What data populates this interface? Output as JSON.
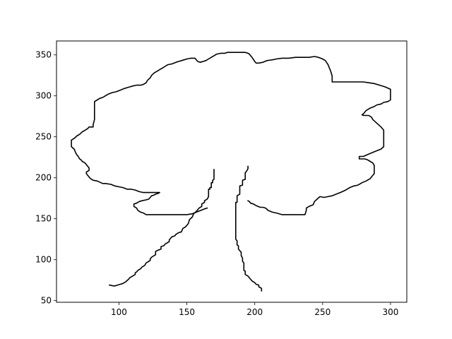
{
  "chart_data": {
    "type": "line",
    "title": "",
    "xlabel": "",
    "ylabel": "",
    "xlim": [
      54,
      312
    ],
    "ylim": [
      48,
      367
    ],
    "xticks": [
      100,
      150,
      200,
      250,
      300
    ],
    "yticks": [
      50,
      100,
      150,
      200,
      250,
      300,
      350
    ],
    "grid": false,
    "legend": "none",
    "line_color": "#000000",
    "series": [
      {
        "points": [
          [
            170,
            210
          ],
          [
            170,
            198
          ],
          [
            169,
            197
          ],
          [
            169,
            194
          ],
          [
            168,
            194
          ],
          [
            168,
            188
          ],
          [
            167,
            188
          ],
          [
            167,
            186
          ],
          [
            166,
            186
          ],
          [
            166,
            177
          ],
          [
            165,
            174
          ],
          [
            163,
            172
          ],
          [
            163,
            170
          ],
          [
            161,
            168
          ],
          [
            161,
            165
          ],
          [
            159,
            163
          ],
          [
            157,
            159
          ],
          [
            155,
            156
          ],
          [
            154,
            152
          ],
          [
            152,
            149
          ],
          [
            151,
            144
          ],
          [
            150,
            142
          ],
          [
            149,
            140
          ],
          [
            147,
            138
          ],
          [
            146,
            134
          ],
          [
            144,
            133
          ],
          [
            142,
            131
          ],
          [
            141,
            129
          ],
          [
            139,
            128
          ],
          [
            137,
            124
          ],
          [
            137,
            122
          ],
          [
            134,
            119
          ],
          [
            133,
            117
          ],
          [
            131,
            116
          ],
          [
            131,
            113
          ],
          [
            128,
            111
          ],
          [
            127,
            110
          ],
          [
            127,
            106
          ],
          [
            125,
            104
          ],
          [
            124,
            103
          ],
          [
            123,
            101
          ],
          [
            123,
            99
          ],
          [
            121,
            97
          ],
          [
            120,
            96
          ],
          [
            119,
            93
          ],
          [
            117,
            91
          ],
          [
            116,
            89
          ],
          [
            114,
            87
          ],
          [
            113,
            85
          ],
          [
            112,
            84
          ],
          [
            112,
            82
          ],
          [
            110,
            80
          ],
          [
            108,
            78
          ],
          [
            107,
            76
          ],
          [
            105,
            73
          ],
          [
            103,
            71
          ],
          [
            101,
            70
          ],
          [
            99,
            69
          ],
          [
            97,
            68
          ],
          [
            96,
            68
          ],
          [
            93,
            69
          ]
        ]
      },
      {
        "points": [
          [
            165,
            163
          ],
          [
            163,
            162
          ],
          [
            160,
            160
          ],
          [
            157,
            158
          ],
          [
            154,
            156
          ],
          [
            150,
            155
          ],
          [
            145,
            155
          ],
          [
            140,
            155
          ],
          [
            135,
            155
          ],
          [
            130,
            155
          ],
          [
            125,
            155
          ],
          [
            120,
            155
          ],
          [
            118,
            157
          ],
          [
            116,
            158
          ],
          [
            114,
            160
          ],
          [
            113,
            163
          ],
          [
            111,
            165
          ],
          [
            111,
            168
          ],
          [
            113,
            169
          ],
          [
            115,
            171
          ],
          [
            117,
            172
          ],
          [
            120,
            173
          ],
          [
            122,
            174
          ],
          [
            123,
            176
          ],
          [
            124,
            178
          ],
          [
            126,
            179
          ],
          [
            127,
            180
          ],
          [
            129,
            181
          ],
          [
            130,
            182
          ],
          [
            122,
            182
          ],
          [
            118,
            182
          ],
          [
            115,
            183
          ],
          [
            112,
            185
          ],
          [
            109,
            186
          ],
          [
            106,
            186
          ],
          [
            103,
            188
          ],
          [
            100,
            189
          ],
          [
            97,
            190
          ],
          [
            94,
            192
          ],
          [
            90,
            193
          ],
          [
            88,
            193
          ],
          [
            84,
            196
          ],
          [
            81,
            197
          ],
          [
            79,
            199
          ],
          [
            77,
            203
          ],
          [
            76,
            205
          ],
          [
            76,
            207
          ],
          [
            78,
            209
          ],
          [
            78,
            212
          ],
          [
            77,
            214
          ],
          [
            76,
            216
          ],
          [
            75,
            218
          ],
          [
            73,
            220
          ],
          [
            72,
            222
          ],
          [
            71,
            223
          ],
          [
            70,
            226
          ],
          [
            69,
            228
          ],
          [
            68,
            231
          ],
          [
            67,
            235
          ],
          [
            65,
            238
          ],
          [
            65,
            246
          ],
          [
            67,
            248
          ],
          [
            69,
            251
          ],
          [
            71,
            253
          ],
          [
            73,
            256
          ],
          [
            75,
            258
          ],
          [
            77,
            260
          ],
          [
            78,
            262
          ],
          [
            81,
            262
          ],
          [
            81,
            265
          ],
          [
            82,
            271
          ],
          [
            82,
            280
          ],
          [
            82,
            287
          ],
          [
            82,
            293
          ],
          [
            84,
            295
          ],
          [
            86,
            297
          ],
          [
            88,
            298
          ],
          [
            90,
            300
          ],
          [
            92,
            302
          ],
          [
            95,
            304
          ],
          [
            98,
            305
          ],
          [
            101,
            307
          ],
          [
            104,
            309
          ],
          [
            106,
            310
          ],
          [
            108,
            311
          ],
          [
            110,
            312
          ],
          [
            113,
            313
          ],
          [
            116,
            313
          ],
          [
            118,
            314
          ],
          [
            120,
            316
          ],
          [
            121,
            319
          ],
          [
            123,
            322
          ],
          [
            124,
            325
          ],
          [
            126,
            328
          ],
          [
            128,
            330
          ],
          [
            130,
            332
          ],
          [
            132,
            334
          ],
          [
            134,
            336
          ],
          [
            136,
            338
          ],
          [
            139,
            339
          ],
          [
            142,
            341
          ],
          [
            144,
            342
          ],
          [
            146,
            343
          ],
          [
            148,
            344
          ],
          [
            150,
            345
          ],
          [
            153,
            346
          ],
          [
            156,
            346
          ],
          [
            158,
            342
          ],
          [
            160,
            341
          ],
          [
            162,
            342
          ],
          [
            164,
            343
          ],
          [
            166,
            345
          ],
          [
            168,
            347
          ],
          [
            170,
            349
          ],
          [
            172,
            351
          ],
          [
            175,
            352
          ],
          [
            178,
            352
          ],
          [
            180,
            353
          ],
          [
            183,
            353
          ],
          [
            187,
            353
          ],
          [
            190,
            353
          ],
          [
            193,
            353
          ],
          [
            195,
            352
          ],
          [
            196,
            351
          ],
          [
            197,
            349
          ],
          [
            198,
            347
          ],
          [
            200,
            342
          ],
          [
            201,
            340
          ],
          [
            203,
            340
          ],
          [
            206,
            341
          ],
          [
            209,
            343
          ],
          [
            213,
            344
          ],
          [
            216,
            345
          ],
          [
            220,
            346
          ],
          [
            225,
            346
          ],
          [
            230,
            347
          ],
          [
            235,
            347
          ],
          [
            240,
            347
          ],
          [
            244,
            348
          ],
          [
            247,
            347
          ],
          [
            250,
            345
          ],
          [
            252,
            343
          ],
          [
            254,
            338
          ],
          [
            255,
            334
          ],
          [
            256,
            330
          ],
          [
            257,
            324
          ],
          [
            257,
            317
          ],
          [
            262,
            317
          ],
          [
            266,
            317
          ],
          [
            270,
            317
          ],
          [
            275,
            317
          ],
          [
            280,
            317
          ],
          [
            284,
            316
          ],
          [
            288,
            315
          ],
          [
            292,
            313
          ],
          [
            296,
            311
          ],
          [
            300,
            308
          ],
          [
            300,
            301
          ],
          [
            300,
            295
          ],
          [
            298,
            293
          ],
          [
            295,
            292
          ],
          [
            293,
            290
          ],
          [
            290,
            289
          ],
          [
            288,
            287
          ],
          [
            285,
            285
          ],
          [
            282,
            282
          ],
          [
            280,
            278
          ],
          [
            279,
            277
          ],
          [
            280,
            276
          ],
          [
            284,
            276
          ],
          [
            286,
            274
          ],
          [
            287,
            271
          ],
          [
            289,
            268
          ],
          [
            291,
            265
          ],
          [
            293,
            262
          ],
          [
            295,
            258
          ],
          [
            295,
            252
          ],
          [
            295,
            245
          ],
          [
            295,
            238
          ],
          [
            293,
            235
          ],
          [
            290,
            233
          ],
          [
            287,
            231
          ],
          [
            284,
            229
          ],
          [
            280,
            226
          ],
          [
            277,
            226
          ],
          [
            277,
            223
          ],
          [
            281,
            223
          ],
          [
            283,
            222
          ],
          [
            285,
            220
          ],
          [
            287,
            218
          ],
          [
            288,
            215
          ],
          [
            288,
            210
          ],
          [
            288,
            205
          ],
          [
            286,
            201
          ],
          [
            285,
            199
          ],
          [
            282,
            196
          ],
          [
            279,
            194
          ],
          [
            276,
            191
          ],
          [
            273,
            190
          ],
          [
            270,
            188
          ],
          [
            267,
            185
          ],
          [
            263,
            182
          ],
          [
            260,
            180
          ],
          [
            257,
            178
          ],
          [
            254,
            177
          ],
          [
            251,
            176
          ],
          [
            248,
            177
          ],
          [
            246,
            174
          ],
          [
            244,
            171
          ],
          [
            243,
            167
          ],
          [
            240,
            165
          ],
          [
            238,
            163
          ],
          [
            238,
            160
          ],
          [
            237,
            155
          ],
          [
            233,
            155
          ],
          [
            229,
            155
          ],
          [
            225,
            155
          ],
          [
            220,
            155
          ],
          [
            216,
            157
          ],
          [
            213,
            158
          ],
          [
            210,
            160
          ],
          [
            208,
            163
          ],
          [
            206,
            164
          ],
          [
            204,
            164
          ],
          [
            201,
            166
          ],
          [
            199,
            168
          ],
          [
            197,
            169
          ],
          [
            196,
            171
          ],
          [
            195,
            172
          ]
        ]
      },
      {
        "points": [
          [
            195,
            214
          ],
          [
            195,
            211
          ],
          [
            194,
            208
          ],
          [
            193,
            206
          ],
          [
            193,
            198
          ],
          [
            191,
            197
          ],
          [
            191,
            191
          ],
          [
            189,
            190
          ],
          [
            189,
            180
          ],
          [
            187,
            178
          ],
          [
            187,
            170
          ],
          [
            186,
            170
          ],
          [
            186,
            160
          ],
          [
            186,
            150
          ],
          [
            186,
            140
          ],
          [
            186,
            125
          ],
          [
            187,
            123
          ],
          [
            187,
            118
          ],
          [
            188,
            117
          ],
          [
            188,
            113
          ],
          [
            189,
            111
          ],
          [
            190,
            109
          ],
          [
            190,
            105
          ],
          [
            191,
            102
          ],
          [
            191,
            98
          ],
          [
            192,
            96
          ],
          [
            192,
            87
          ],
          [
            193,
            86
          ],
          [
            193,
            82
          ],
          [
            195,
            80
          ],
          [
            196,
            78
          ],
          [
            197,
            76
          ],
          [
            198,
            74
          ],
          [
            200,
            72
          ],
          [
            201,
            70
          ],
          [
            203,
            69
          ],
          [
            203,
            67
          ],
          [
            205,
            65
          ],
          [
            205,
            62
          ]
        ]
      }
    ]
  }
}
